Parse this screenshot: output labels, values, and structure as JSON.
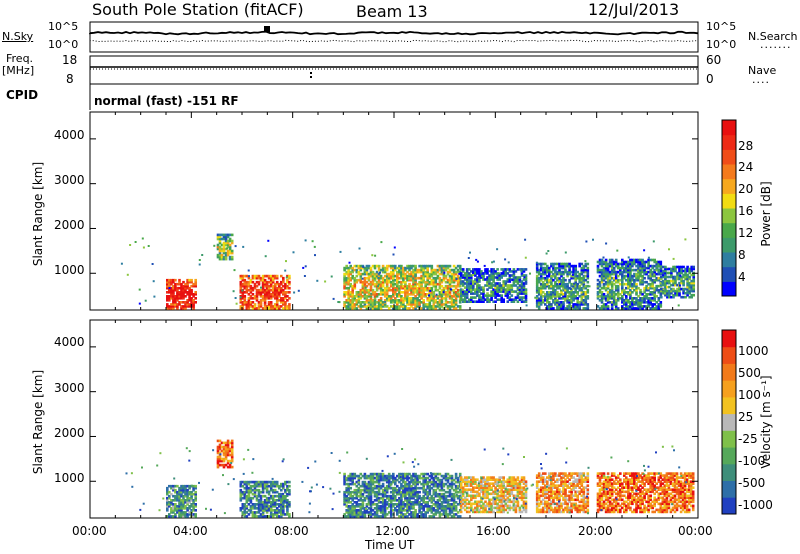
{
  "header": {
    "station": "South Pole Station (fitACF)",
    "beam": "Beam 13",
    "date": "12/Jul/2013"
  },
  "panels": {
    "nsky_label": "N.Sky",
    "nsky_ticks": [
      "10^5",
      "10^0"
    ],
    "nsearch_label": "N.Search",
    "nsearch_ticks": [
      "10^5",
      "10^0"
    ],
    "freq_label": "Freq.",
    "freq_unit": "[MHz]",
    "freq_ticks": [
      "18",
      "8"
    ],
    "nave_label": "Nave",
    "nave_ticks": [
      "60",
      "0"
    ],
    "cpid_label": "CPID",
    "cpid_text": "normal (fast) -151 RF"
  },
  "chart_data": [
    {
      "type": "heatmap",
      "name": "power",
      "ylabel": "Slant Range [km]",
      "xlabel": "",
      "ylim": [
        180,
        4600
      ],
      "xlim": [
        0,
        24
      ],
      "x_ticks": [
        "00:00",
        "04:00",
        "08:00",
        "12:00",
        "16:00",
        "20:00",
        "00:00"
      ],
      "y_ticks": [
        "1000",
        "2000",
        "3000",
        "4000"
      ],
      "colorbar": {
        "label": "Power [dB]",
        "ticks": [
          "28",
          "24",
          "20",
          "16",
          "12",
          "8",
          "4"
        ],
        "colors": [
          "#0000ff",
          "#1f4fb5",
          "#2e7ea0",
          "#3c9a6a",
          "#49a84a",
          "#8cc63f",
          "#f2dc12",
          "#f6a81e",
          "#f47a1c",
          "#f04d18",
          "#ee2a16",
          "#e81010"
        ]
      },
      "regions": [
        {
          "t0": 3.0,
          "t1": 4.2,
          "r0": 200,
          "r1": 850,
          "level": 0.85
        },
        {
          "t0": 5.0,
          "t1": 5.6,
          "r0": 1300,
          "r1": 1850,
          "level": 0.35
        },
        {
          "t0": 5.9,
          "t1": 7.9,
          "r0": 200,
          "r1": 950,
          "level": 0.75
        },
        {
          "t0": 10.0,
          "t1": 14.6,
          "r0": 200,
          "r1": 1150,
          "level": 0.45
        },
        {
          "t0": 14.6,
          "t1": 17.2,
          "r0": 350,
          "r1": 1100,
          "level": 0.15
        },
        {
          "t0": 17.6,
          "t1": 19.6,
          "r0": 200,
          "r1": 1200,
          "level": 0.2
        },
        {
          "t0": 20.0,
          "t1": 22.5,
          "r0": 200,
          "r1": 1300,
          "level": 0.2
        },
        {
          "t0": 22.5,
          "t1": 23.8,
          "r0": 450,
          "r1": 1150,
          "level": 0.2
        }
      ]
    },
    {
      "type": "heatmap",
      "name": "velocity",
      "ylabel": "Slant Range [km]",
      "xlabel": "Time UT",
      "ylim": [
        180,
        4600
      ],
      "xlim": [
        0,
        24
      ],
      "x_ticks": [
        "00:00",
        "04:00",
        "08:00",
        "12:00",
        "16:00",
        "20:00",
        "00:00"
      ],
      "y_ticks": [
        "1000",
        "2000",
        "3000",
        "4000"
      ],
      "colorbar": {
        "label": "Velocity [m s⁻¹]",
        "ticks": [
          "1000",
          "500",
          "100",
          "25",
          "-25",
          "-100",
          "-500",
          "-1000"
        ],
        "colors": [
          "#2040c0",
          "#2e6fa8",
          "#3e8e7a",
          "#55a85a",
          "#7fc04a",
          "#b8b8b8",
          "#f2c220",
          "#f5a01e",
          "#f27a1a",
          "#ee4d16",
          "#e81010"
        ]
      },
      "regions": [
        {
          "t0": 3.0,
          "t1": 4.2,
          "r0": 200,
          "r1": 900,
          "level": 0.25
        },
        {
          "t0": 5.0,
          "t1": 5.6,
          "r0": 1300,
          "r1": 1900,
          "level": 0.8
        },
        {
          "t0": 5.9,
          "t1": 7.9,
          "r0": 200,
          "r1": 1000,
          "level": 0.2
        },
        {
          "t0": 10.0,
          "t1": 14.6,
          "r0": 200,
          "r1": 1150,
          "level": 0.2
        },
        {
          "t0": 14.6,
          "t1": 17.2,
          "r0": 300,
          "r1": 1100,
          "level": 0.6
        },
        {
          "t0": 17.6,
          "t1": 19.6,
          "r0": 300,
          "r1": 1200,
          "level": 0.7
        },
        {
          "t0": 20.0,
          "t1": 23.8,
          "r0": 300,
          "r1": 1200,
          "level": 0.8
        }
      ]
    }
  ]
}
